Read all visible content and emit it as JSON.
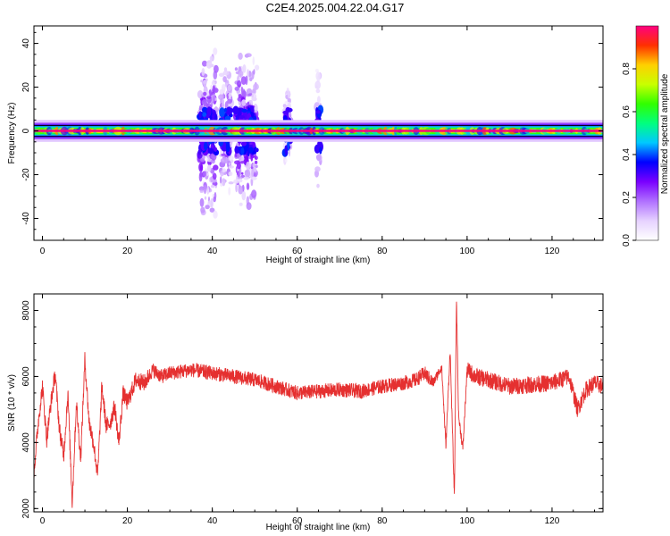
{
  "title": "C2E4.2025.004.22.04.G17",
  "colors": {
    "snr_line": "#e53030",
    "frame": "#000000",
    "background": "#ffffff",
    "colormap": [
      "#ffffff",
      "#e6d2ff",
      "#b070ff",
      "#7a00ff",
      "#0000ff",
      "#00c8ff",
      "#00ff80",
      "#30ff00",
      "#c8ff00",
      "#ffd000",
      "#ff3000",
      "#ff0080"
    ]
  },
  "chart_data": [
    {
      "type": "heatmap",
      "name": "spectrogram",
      "xlabel": "Height of straight line (km)",
      "ylabel": "Frequency (Hz)",
      "xlim": [
        -2,
        132
      ],
      "ylim": [
        -50,
        48
      ],
      "xticks": [
        0,
        20,
        40,
        60,
        80,
        100,
        120
      ],
      "yticks": [
        -40,
        -20,
        0,
        20,
        40
      ],
      "colorbar": {
        "label": "Normalized spectral amplitude",
        "range": [
          0,
          1
        ],
        "ticks": [
          "0.0",
          "0.2",
          "0.4",
          "0.6",
          "0.8"
        ],
        "tick_values": [
          0,
          0.2,
          0.4,
          0.6,
          0.8
        ]
      },
      "ridge": {
        "frequency": 0,
        "amplitude": 0.95,
        "half_width_hz": 2.5
      },
      "bursts": [
        {
          "x_range": [
            37,
            41
          ],
          "freq_range": [
            -40,
            40
          ],
          "peak_amplitude": 0.3
        },
        {
          "x_range": [
            42,
            44.5
          ],
          "freq_range": [
            -30,
            30
          ],
          "peak_amplitude": 0.25
        },
        {
          "x_range": [
            45.5,
            50.5
          ],
          "freq_range": [
            -38,
            37
          ],
          "peak_amplitude": 0.3
        },
        {
          "x_range": [
            57,
            58.5
          ],
          "freq_range": [
            -15,
            20
          ],
          "peak_amplitude": 0.2
        },
        {
          "x_range": [
            64.5,
            65.5
          ],
          "freq_range": [
            -28,
            30
          ],
          "peak_amplitude": 0.2
        }
      ]
    },
    {
      "type": "line",
      "name": "snr",
      "xlabel": "Height of straight line (km)",
      "ylabel": "SNR (10 * v/v)",
      "xlim": [
        -2,
        132
      ],
      "ylim": [
        1900,
        8500
      ],
      "xticks": [
        0,
        20,
        40,
        60,
        80,
        100,
        120
      ],
      "yticks": [
        2000,
        4000,
        6000,
        8000
      ],
      "x": [
        -2,
        -1,
        0,
        1,
        2,
        3,
        4,
        5,
        6,
        7,
        8,
        9,
        10,
        11,
        12,
        13,
        14,
        15,
        16,
        17,
        18,
        19,
        20,
        22,
        24,
        26,
        28,
        30,
        35,
        40,
        45,
        50,
        55,
        60,
        65,
        70,
        75,
        80,
        85,
        88,
        90,
        92,
        94,
        95,
        96,
        97,
        97.5,
        98,
        99,
        100,
        102,
        105,
        110,
        115,
        120,
        122,
        124,
        126,
        128,
        130,
        132
      ],
      "y": [
        3100,
        4600,
        5700,
        4100,
        5200,
        6100,
        4400,
        3600,
        5500,
        2200,
        5200,
        3500,
        6500,
        4600,
        4000,
        3000,
        5700,
        4500,
        4600,
        5100,
        4000,
        5500,
        5200,
        5900,
        5800,
        6200,
        6000,
        6100,
        6200,
        6100,
        6000,
        5900,
        5700,
        5500,
        5550,
        5600,
        5550,
        5700,
        5800,
        5900,
        6100,
        5800,
        6300,
        3900,
        6800,
        2300,
        8400,
        4800,
        3800,
        6200,
        6000,
        5900,
        5700,
        5750,
        5800,
        5900,
        6000,
        5000,
        5600,
        5800,
        5700
      ]
    }
  ]
}
